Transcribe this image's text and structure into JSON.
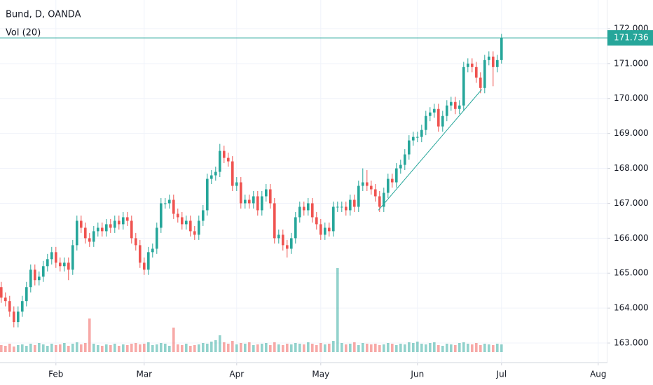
{
  "chart_data": {
    "type": "candlestick",
    "title": "Bund, D, OANDA",
    "volume_title": "Vol (20)",
    "up_color": "#26a69a",
    "down_color": "#ef5350",
    "grid": true,
    "xlim": [
      -0.3,
      144.2
    ],
    "ylim": [
      162.44,
      172.82
    ],
    "xticks": [
      {
        "value": 13,
        "label": "Feb"
      },
      {
        "value": 34,
        "label": "Mar"
      },
      {
        "value": 56,
        "label": "Apr"
      },
      {
        "value": 76,
        "label": "May"
      },
      {
        "value": 99,
        "label": "Jun"
      },
      {
        "value": 119,
        "label": "Jul"
      },
      {
        "value": 142,
        "label": "Aug"
      }
    ],
    "yticks": [
      {
        "value": 163,
        "label": "163.000"
      },
      {
        "value": 164,
        "label": "164.000"
      },
      {
        "value": 165,
        "label": "165.000"
      },
      {
        "value": 166,
        "label": "166.000"
      },
      {
        "value": 167,
        "label": "167.000"
      },
      {
        "value": 168,
        "label": "168.000"
      },
      {
        "value": 169,
        "label": "169.000"
      },
      {
        "value": 170,
        "label": "170.000"
      },
      {
        "value": 171,
        "label": "171.000"
      },
      {
        "value": 172,
        "label": "172.000"
      }
    ],
    "open": [
      164.6,
      164.3,
      164.2,
      163.9,
      163.6,
      163.9,
      164.2,
      164.6,
      165.1,
      164.8,
      164.9,
      165.2,
      165.4,
      165.6,
      165.3,
      165.2,
      165.3,
      165.1,
      165.8,
      166.5,
      166.3,
      166.0,
      165.9,
      166.2,
      166.3,
      166.2,
      166.4,
      166.3,
      166.5,
      166.4,
      166.6,
      166.5,
      166.0,
      165.8,
      165.3,
      165.1,
      165.6,
      165.7,
      166.3,
      167.0,
      167.0,
      167.1,
      166.7,
      166.6,
      166.4,
      166.5,
      166.2,
      166.1,
      166.5,
      166.8,
      167.7,
      167.8,
      167.9,
      168.5,
      168.3,
      168.2,
      167.5,
      167.6,
      167.0,
      167.1,
      167.0,
      167.2,
      166.8,
      167.2,
      167.4,
      167.0,
      166.0,
      166.1,
      165.8,
      165.7,
      166.0,
      166.6,
      166.9,
      166.8,
      167.0,
      166.6,
      166.4,
      166.1,
      166.3,
      166.2,
      166.9,
      166.9,
      166.9,
      166.8,
      167.1,
      166.9,
      167.5,
      167.6,
      167.5,
      167.4,
      167.2,
      166.9,
      167.3,
      167.7,
      167.6,
      168.0,
      168.1,
      168.4,
      168.8,
      168.9,
      168.9,
      169.1,
      169.5,
      169.6,
      169.7,
      169.2,
      169.5,
      169.8,
      169.9,
      169.7,
      169.8,
      170.9,
      171.0,
      170.9,
      170.6,
      170.3,
      171.1,
      171.2,
      170.9,
      171.1
    ],
    "high": [
      164.75,
      164.45,
      164.35,
      164.05,
      164.05,
      164.35,
      164.75,
      165.25,
      165.25,
      165.05,
      165.35,
      165.55,
      165.75,
      165.75,
      165.45,
      165.45,
      165.45,
      165.95,
      166.65,
      166.65,
      166.45,
      166.15,
      166.35,
      166.45,
      166.45,
      166.55,
      166.55,
      166.65,
      166.65,
      166.75,
      166.75,
      166.65,
      166.15,
      165.95,
      165.45,
      165.75,
      165.85,
      166.45,
      167.15,
      167.15,
      167.25,
      167.25,
      166.85,
      166.75,
      166.65,
      166.65,
      166.35,
      166.65,
      166.95,
      167.85,
      167.95,
      168.05,
      168.7,
      168.65,
      168.45,
      168.35,
      167.75,
      167.75,
      167.25,
      167.25,
      167.35,
      167.35,
      167.35,
      167.55,
      167.55,
      167.15,
      166.25,
      166.25,
      165.95,
      166.15,
      166.75,
      167.05,
      167.05,
      167.15,
      167.15,
      166.75,
      166.55,
      166.45,
      166.45,
      167.05,
      167.05,
      167.05,
      167.05,
      167.25,
      167.25,
      167.65,
      168.0,
      167.95,
      167.65,
      167.55,
      167.35,
      167.45,
      167.85,
      167.85,
      168.15,
      168.25,
      168.55,
      168.95,
      169.05,
      169.05,
      169.25,
      169.65,
      169.75,
      169.85,
      169.85,
      169.65,
      169.95,
      170.05,
      170.05,
      169.95,
      171.05,
      171.15,
      171.15,
      171.05,
      170.75,
      171.25,
      171.35,
      171.35,
      171.25,
      171.85
    ],
    "low": [
      164.15,
      164.05,
      163.75,
      163.45,
      163.45,
      163.75,
      164.05,
      164.45,
      164.65,
      164.65,
      164.75,
      165.05,
      165.25,
      165.15,
      165.05,
      165.05,
      164.8,
      164.95,
      165.65,
      166.15,
      165.85,
      165.75,
      165.75,
      166.05,
      166.05,
      166.05,
      166.15,
      166.15,
      166.25,
      166.25,
      166.35,
      165.85,
      165.65,
      165.15,
      164.95,
      164.95,
      165.45,
      165.55,
      166.15,
      166.85,
      166.85,
      166.55,
      166.45,
      166.25,
      166.25,
      166.05,
      165.95,
      165.95,
      166.35,
      166.65,
      167.55,
      167.65,
      167.75,
      168.15,
      168.05,
      167.35,
      167.35,
      166.85,
      166.85,
      166.85,
      166.85,
      166.65,
      166.65,
      167.05,
      166.85,
      165.85,
      165.85,
      165.65,
      165.45,
      165.55,
      165.85,
      166.45,
      166.65,
      166.65,
      166.45,
      166.25,
      165.95,
      165.95,
      166.05,
      166.05,
      166.75,
      166.75,
      166.65,
      166.65,
      166.75,
      166.75,
      167.35,
      167.35,
      167.25,
      167.05,
      166.75,
      166.75,
      167.15,
      167.45,
      167.45,
      167.85,
      167.95,
      168.25,
      168.65,
      168.75,
      168.75,
      168.95,
      169.35,
      169.45,
      169.05,
      169.05,
      169.35,
      169.65,
      169.55,
      169.55,
      169.65,
      170.75,
      170.75,
      170.45,
      170.15,
      170.15,
      170.95,
      170.35,
      170.75,
      171.0
    ],
    "close": [
      164.3,
      164.2,
      163.9,
      163.6,
      163.9,
      164.2,
      164.6,
      165.1,
      164.8,
      164.9,
      165.2,
      165.4,
      165.6,
      165.3,
      165.2,
      165.3,
      165.1,
      165.8,
      166.5,
      166.3,
      166.0,
      165.9,
      166.2,
      166.3,
      166.2,
      166.4,
      166.3,
      166.5,
      166.4,
      166.6,
      166.5,
      166.0,
      165.8,
      165.3,
      165.1,
      165.6,
      165.7,
      166.3,
      167.0,
      167.0,
      167.1,
      166.7,
      166.6,
      166.4,
      166.5,
      166.2,
      166.1,
      166.5,
      166.8,
      167.7,
      167.8,
      167.9,
      168.5,
      168.3,
      168.2,
      167.5,
      167.6,
      167.0,
      167.1,
      167.0,
      167.2,
      166.8,
      167.2,
      167.4,
      167.0,
      166.0,
      166.1,
      165.8,
      165.7,
      166.0,
      166.6,
      166.9,
      166.8,
      167.0,
      166.6,
      166.4,
      166.1,
      166.3,
      166.2,
      166.9,
      166.9,
      166.9,
      166.8,
      167.1,
      166.9,
      167.5,
      167.6,
      167.5,
      167.4,
      167.2,
      166.9,
      167.3,
      167.7,
      167.6,
      168.0,
      168.1,
      168.4,
      168.8,
      168.9,
      168.9,
      169.1,
      169.5,
      169.6,
      169.7,
      169.2,
      169.5,
      169.8,
      169.9,
      169.7,
      169.8,
      170.9,
      171.0,
      170.9,
      170.6,
      170.3,
      171.1,
      171.2,
      170.9,
      171.1,
      171.736
    ],
    "volume": [
      10,
      9,
      12,
      8,
      10,
      11,
      9,
      12,
      10,
      13,
      11,
      9,
      12,
      10,
      11,
      13,
      9,
      12,
      14,
      11,
      13,
      48,
      12,
      10,
      9,
      11,
      10,
      12,
      9,
      11,
      10,
      12,
      13,
      11,
      12,
      14,
      10,
      11,
      13,
      12,
      9,
      35,
      11,
      10,
      12,
      9,
      10,
      11,
      13,
      12,
      15,
      17,
      24,
      14,
      12,
      16,
      11,
      13,
      12,
      14,
      10,
      11,
      12,
      13,
      10,
      14,
      11,
      10,
      12,
      11,
      13,
      12,
      11,
      14,
      12,
      10,
      13,
      11,
      12,
      16,
      120,
      13,
      11,
      12,
      14,
      10,
      13,
      12,
      11,
      12,
      10,
      11,
      13,
      12,
      10,
      12,
      11,
      14,
      13,
      15,
      12,
      11,
      13,
      14,
      10,
      9,
      12,
      11,
      10,
      13,
      14,
      12,
      11,
      13,
      10,
      12,
      11,
      10,
      12,
      11
    ],
    "trendline": [
      [
        89.7,
        166.8
      ],
      [
        114.3,
        170.26
      ]
    ],
    "last_price_color": "#26a69a"
  }
}
